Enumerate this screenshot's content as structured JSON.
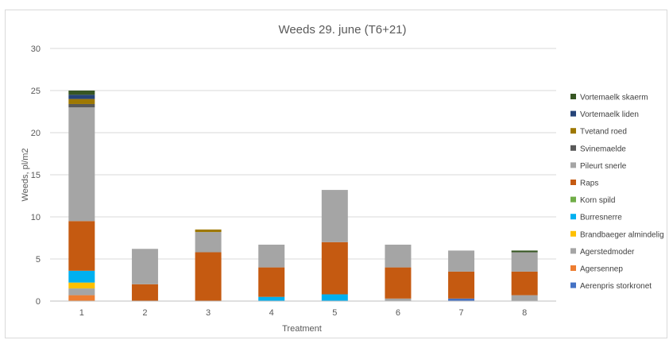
{
  "chart_data": {
    "type": "bar",
    "stacked": true,
    "title": "Weeds 29. june (T6+21)",
    "xlabel": "Treatment",
    "ylabel": "Weeds, pl/m2",
    "ylim": [
      0,
      30
    ],
    "yticks": [
      0,
      5,
      10,
      15,
      20,
      25,
      30
    ],
    "grid": true,
    "legend_position": "right",
    "categories": [
      "1",
      "2",
      "3",
      "4",
      "5",
      "6",
      "7",
      "8"
    ],
    "series": [
      {
        "name": "Aerenpris storkronet",
        "color": "#4472c4",
        "values": [
          0,
          0,
          0,
          0,
          0,
          0,
          0.3,
          0
        ]
      },
      {
        "name": "Agersennep",
        "color": "#ed7d31",
        "values": [
          0.7,
          0,
          0,
          0,
          0,
          0,
          0,
          0
        ]
      },
      {
        "name": "Agerstedmoder",
        "color": "#a5a5a5",
        "values": [
          0.8,
          0,
          0,
          0,
          0,
          0.3,
          0,
          0.7
        ]
      },
      {
        "name": "Brandbaeger almindelig",
        "color": "#ffc000",
        "values": [
          0.7,
          0,
          0,
          0,
          0,
          0,
          0,
          0
        ]
      },
      {
        "name": "Burresnerre",
        "color": "#00b0f0",
        "values": [
          1.4,
          0,
          0,
          0.5,
          0.8,
          0,
          0,
          0
        ]
      },
      {
        "name": "Korn spild",
        "color": "#70ad47",
        "values": [
          0,
          0,
          0,
          0,
          0,
          0,
          0,
          0
        ]
      },
      {
        "name": "Raps",
        "color": "#c55a11",
        "values": [
          5.9,
          2.0,
          5.8,
          3.5,
          6.2,
          3.7,
          3.2,
          2.8
        ]
      },
      {
        "name": "Pileurt snerle",
        "color": "#a5a5a5",
        "values": [
          13.5,
          4.2,
          2.4,
          2.7,
          6.2,
          2.7,
          2.5,
          2.3
        ]
      },
      {
        "name": "Svinemaelde",
        "color": "#595959",
        "values": [
          0.4,
          0,
          0,
          0,
          0,
          0,
          0,
          0
        ]
      },
      {
        "name": "Tvetand roed",
        "color": "#9e7802",
        "values": [
          0.6,
          0,
          0.3,
          0,
          0,
          0,
          0,
          0
        ]
      },
      {
        "name": "Vortemaelk liden",
        "color": "#264478",
        "values": [
          0.5,
          0,
          0,
          0,
          0,
          0,
          0,
          0
        ]
      },
      {
        "name": "Vortemaelk skaerm",
        "color": "#375623",
        "values": [
          0.5,
          0,
          0,
          0,
          0,
          0,
          0,
          0.2
        ]
      }
    ]
  }
}
